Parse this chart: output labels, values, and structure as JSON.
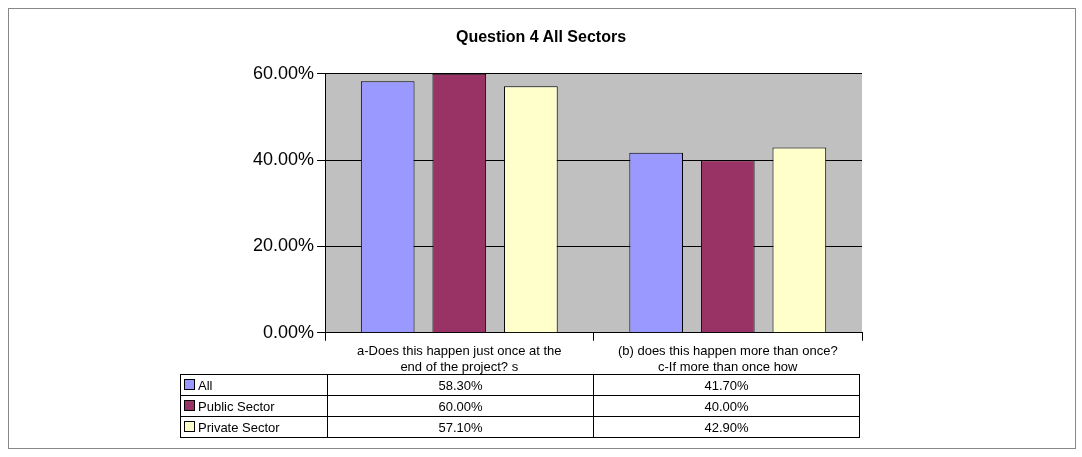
{
  "chart_data": {
    "type": "bar",
    "title": "Question 4 All Sectors",
    "categories": [
      "a-Does this happen just once at the end of the project? s",
      "(b) does this happen more than once? c-If more than once how"
    ],
    "series": [
      {
        "name": "All",
        "color": "#9999ff",
        "values": [
          58.3,
          41.7
        ],
        "value_labels": [
          "58.30%",
          "41.70%"
        ]
      },
      {
        "name": "Public Sector",
        "color": "#993366",
        "values": [
          60.0,
          40.0
        ],
        "value_labels": [
          "60.00%",
          "40.00%"
        ]
      },
      {
        "name": "Private Sector",
        "color": "#ffffcc",
        "values": [
          57.1,
          42.9
        ],
        "value_labels": [
          "57.10%",
          "42.90%"
        ]
      }
    ],
    "ylim": [
      0,
      60
    ],
    "yticks": [
      {
        "value": 0,
        "label": "0.00%"
      },
      {
        "value": 20,
        "label": "20.00%"
      },
      {
        "value": 40,
        "label": "40.00%"
      },
      {
        "value": 60,
        "label": "60.00%"
      }
    ],
    "grid": "y",
    "legend": "bottom"
  }
}
